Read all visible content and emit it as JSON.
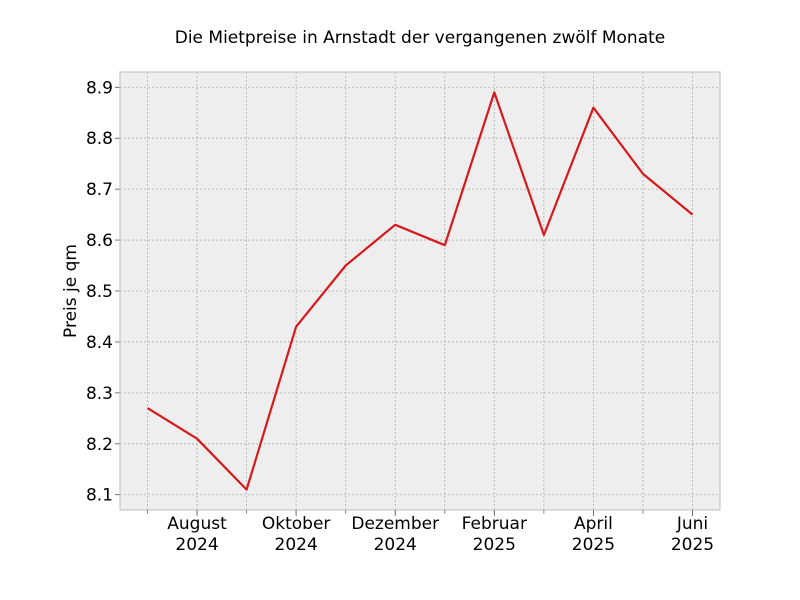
{
  "chart_data": {
    "type": "line",
    "title": "Die Mietpreise in Arnstadt der vergangenen zwölf Monate",
    "xlabel": "",
    "ylabel": "Preis je qm",
    "x": [
      "2024-07",
      "2024-08",
      "2024-09",
      "2024-10",
      "2024-11",
      "2024-12",
      "2025-01",
      "2025-02",
      "2025-03",
      "2025-04",
      "2025-05",
      "2025-06"
    ],
    "series": [
      {
        "values": [
          8.27,
          8.21,
          8.11,
          8.43,
          8.55,
          8.63,
          8.59,
          8.89,
          8.61,
          8.86,
          8.73,
          8.65
        ],
        "color": "#d7191c"
      }
    ],
    "ylim": [
      8.07,
      8.93
    ],
    "yticks": [
      8.1,
      8.2,
      8.3,
      8.4,
      8.5,
      8.6,
      8.7,
      8.8,
      8.9
    ],
    "ytick_labels": [
      "8.1",
      "8.2",
      "8.3",
      "8.4",
      "8.5",
      "8.6",
      "8.7",
      "8.8",
      "8.9"
    ],
    "xticks_labeled": [
      {
        "x": "2024-08",
        "line1": "August",
        "line2": "2024"
      },
      {
        "x": "2024-10",
        "line1": "Oktober",
        "line2": "2024"
      },
      {
        "x": "2024-12",
        "line1": "Dezember",
        "line2": "2024"
      },
      {
        "x": "2025-02",
        "line1": "Februar",
        "line2": "2025"
      },
      {
        "x": "2025-04",
        "line1": "April",
        "line2": "2025"
      },
      {
        "x": "2025-06",
        "line1": "Juni",
        "line2": "2025"
      }
    ],
    "grid": true,
    "colors": {
      "background": "#eeeeee",
      "grid": "#b0b0b0",
      "frame": "#bcbcbc",
      "line": "#d7191c"
    }
  }
}
